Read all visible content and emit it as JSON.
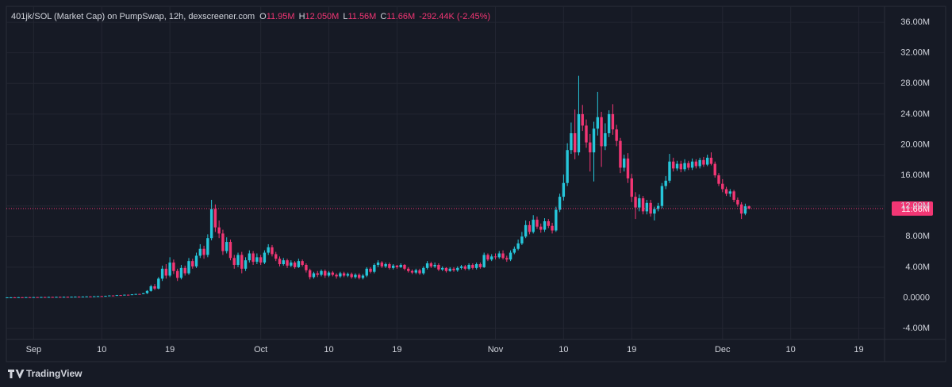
{
  "chart_data": {
    "type": "candlestick",
    "title": "401jk/SOL (Market Cap) on PumpSwap, 12h, dexscreener.com",
    "ohlc_legend": [
      {
        "key": "O",
        "value": "11.95M"
      },
      {
        "key": "H",
        "value": "12.050M"
      },
      {
        "key": "L",
        "value": "11.56M"
      },
      {
        "key": "C",
        "value": "11.66M"
      }
    ],
    "change": "-292.44K (-2.45%)",
    "brand": "TradingView",
    "last_price": {
      "value": 11.66,
      "label": "11.66M"
    },
    "up_color": "#26c6da",
    "down_color": "#f23674",
    "grid": true,
    "xlim": [
      -3.6,
      112.4
    ],
    "xticks": [
      {
        "value": 0,
        "label": "Sep"
      },
      {
        "value": 9,
        "label": "10"
      },
      {
        "value": 18,
        "label": "19"
      },
      {
        "value": 30,
        "label": "Oct"
      },
      {
        "value": 39,
        "label": "10"
      },
      {
        "value": 48,
        "label": "19"
      },
      {
        "value": 61,
        "label": "Nov"
      },
      {
        "value": 70,
        "label": "10"
      },
      {
        "value": 79,
        "label": "19"
      },
      {
        "value": 91,
        "label": "Dec"
      },
      {
        "value": 100,
        "label": "10"
      },
      {
        "value": 109,
        "label": "19"
      }
    ],
    "ylim": [
      -5.44,
      38.08
    ],
    "yticks": [
      {
        "value": -4,
        "label": "-4.00M"
      },
      {
        "value": 0,
        "label": "0.0000"
      },
      {
        "value": 4,
        "label": "4.00M"
      },
      {
        "value": 8,
        "label": "8.00M"
      },
      {
        "value": 12,
        "label": "12.00M"
      },
      {
        "value": 16,
        "label": "16.00M"
      },
      {
        "value": 20,
        "label": "20.00M"
      },
      {
        "value": 24,
        "label": "24.00M"
      },
      {
        "value": 28,
        "label": "28.00M"
      },
      {
        "value": 32,
        "label": "32.00M"
      },
      {
        "value": 36,
        "label": "36.00M"
      }
    ],
    "x": [
      -3.5,
      -3,
      -2.5,
      -2,
      -1.5,
      -1,
      -0.5,
      0,
      0.5,
      1,
      1.5,
      2,
      2.5,
      3,
      3.5,
      4,
      4.5,
      5,
      5.5,
      6,
      6.5,
      7,
      7.5,
      8,
      8.5,
      9,
      9.5,
      10,
      10.5,
      11,
      11.5,
      12,
      12.5,
      13,
      13.5,
      14,
      14.5,
      15,
      15.5,
      16,
      16.5,
      17,
      17.5,
      18,
      18.5,
      19,
      19.5,
      20,
      20.5,
      21,
      21.5,
      22,
      22.5,
      23,
      23.5,
      24,
      24.5,
      25,
      25.5,
      26,
      26.5,
      27,
      27.5,
      28,
      28.5,
      29,
      29.5,
      30,
      30.5,
      31,
      31.5,
      32,
      32.5,
      33,
      33.5,
      34,
      34.5,
      35,
      35.5,
      36,
      36.5,
      37,
      37.5,
      38,
      38.5,
      39,
      39.5,
      40,
      40.5,
      41,
      41.5,
      42,
      42.5,
      43,
      43.5,
      44,
      44.5,
      45,
      45.5,
      46,
      46.5,
      47,
      47.5,
      48,
      48.5,
      49,
      49.5,
      50,
      50.5,
      51,
      51.5,
      52,
      52.5,
      53,
      53.5,
      54,
      54.5,
      55,
      55.5,
      56,
      56.5,
      57,
      57.5,
      58,
      58.5,
      59,
      59.5,
      60,
      60.5,
      61,
      61.5,
      62,
      62.5,
      63,
      63.5,
      64,
      64.5,
      65,
      65.5,
      66,
      66.5,
      67,
      67.5,
      68,
      68.5,
      69,
      69.5,
      70,
      70.5,
      71,
      71.5,
      72,
      72.5,
      73,
      73.5,
      74,
      74.5,
      75,
      75.5,
      76,
      76.5,
      77,
      77.5,
      78,
      78.5,
      79,
      79.5,
      80,
      80.5,
      81,
      81.5,
      82,
      82.5,
      83,
      83.5,
      84,
      84.5,
      85,
      85.5,
      86,
      86.5,
      87,
      87.5,
      88,
      88.5,
      89,
      89.5,
      90,
      90.5,
      91,
      91.5,
      92,
      92.5,
      93,
      93.5,
      94,
      94.5
    ],
    "open": [
      0.04,
      0.05,
      0.06,
      0.05,
      0.07,
      0.06,
      0.08,
      0.07,
      0.09,
      0.08,
      0.1,
      0.09,
      0.11,
      0.1,
      0.12,
      0.11,
      0.13,
      0.12,
      0.14,
      0.15,
      0.14,
      0.16,
      0.18,
      0.17,
      0.2,
      0.22,
      0.21,
      0.25,
      0.3,
      0.28,
      0.35,
      0.33,
      0.4,
      0.38,
      0.45,
      0.5,
      0.48,
      0.6,
      0.9,
      1.5,
      1.2,
      2.5,
      3.8,
      2.9,
      4.6,
      3.5,
      2.6,
      3.9,
      3.2,
      4.8,
      4.1,
      5.5,
      6.4,
      5.6,
      7.8,
      11.6,
      9.2,
      8.4,
      6.1,
      7.3,
      5.2,
      4.3,
      5.6,
      3.8,
      4.9,
      5.8,
      4.7,
      5.3,
      4.6,
      5.9,
      6.6,
      5.7,
      5.1,
      4.4,
      4.9,
      4.2,
      4.6,
      4.0,
      4.8,
      4.3,
      3.6,
      2.7,
      3.2,
      3.0,
      3.5,
      2.9,
      3.3,
      3.0,
      2.8,
      3.2,
      2.9,
      3.1,
      2.7,
      3.0,
      2.6,
      2.9,
      3.8,
      3.4,
      4.3,
      4.6,
      4.1,
      4.4,
      3.9,
      4.2,
      4.0,
      4.3,
      3.8,
      3.5,
      3.3,
      3.6,
      3.2,
      3.9,
      4.5,
      4.1,
      4.3,
      3.7,
      3.9,
      3.5,
      3.8,
      3.6,
      3.9,
      4.1,
      3.8,
      4.3,
      3.9,
      4.4,
      4.0,
      5.6,
      5.0,
      5.4,
      5.3,
      5.8,
      5.2,
      5.0,
      5.9,
      6.4,
      7.1,
      8.0,
      9.5,
      8.6,
      10.2,
      9.3,
      8.9,
      10.0,
      9.4,
      8.8,
      11.5,
      13.2,
      15.0,
      19.3,
      21.5,
      19.0,
      24.0,
      22.5,
      20.3,
      19.0,
      22.1,
      23.6,
      19.8,
      21.5,
      24.0,
      22.0,
      20.5,
      17.0,
      18.2,
      15.6,
      13.2,
      11.8,
      13.0,
      11.3,
      12.4,
      11.0,
      11.6,
      12.0,
      14.6,
      15.3,
      17.8,
      16.9,
      17.5,
      16.8,
      17.6,
      17.0,
      17.8,
      17.2,
      18.0,
      17.4,
      18.3,
      17.5,
      16.0,
      14.9,
      14.2,
      13.6,
      13.9,
      12.8,
      12.2,
      11.0,
      11.95
    ],
    "high": [
      0.07,
      0.08,
      0.08,
      0.09,
      0.09,
      0.1,
      0.1,
      0.11,
      0.11,
      0.12,
      0.12,
      0.13,
      0.13,
      0.14,
      0.14,
      0.15,
      0.15,
      0.16,
      0.17,
      0.17,
      0.18,
      0.2,
      0.2,
      0.22,
      0.24,
      0.24,
      0.27,
      0.32,
      0.32,
      0.37,
      0.37,
      0.42,
      0.42,
      0.47,
      0.52,
      0.52,
      0.62,
      1.0,
      1.7,
      1.8,
      2.7,
      4.2,
      4.4,
      5.3,
      5.0,
      3.8,
      4.3,
      4.2,
      5.2,
      5.1,
      5.9,
      7.0,
      6.8,
      8.3,
      12.8,
      12.2,
      10.1,
      8.9,
      7.9,
      7.6,
      5.6,
      5.9,
      6.0,
      5.3,
      6.2,
      6.1,
      5.8,
      5.6,
      6.2,
      7.0,
      6.9,
      6.0,
      5.4,
      5.2,
      5.1,
      4.9,
      4.8,
      5.1,
      5.0,
      4.5,
      3.8,
      3.4,
      3.5,
      3.7,
      3.7,
      3.5,
      3.5,
      3.2,
      3.4,
      3.4,
      3.3,
      3.3,
      3.2,
      3.2,
      3.1,
      4.0,
      4.0,
      4.5,
      4.9,
      4.8,
      4.6,
      4.6,
      4.4,
      4.3,
      4.5,
      4.4,
      4.0,
      3.7,
      3.8,
      3.8,
      4.1,
      4.8,
      4.7,
      4.6,
      4.5,
      4.1,
      4.0,
      4.0,
      4.0,
      4.1,
      4.3,
      4.3,
      4.5,
      4.5,
      4.6,
      4.6,
      5.9,
      5.8,
      5.7,
      5.8,
      6.1,
      6.2,
      5.5,
      6.2,
      6.7,
      7.6,
      8.6,
      10.1,
      10.0,
      10.8,
      10.6,
      9.7,
      10.4,
      10.3,
      9.8,
      11.9,
      13.6,
      16.1,
      20.2,
      22.9,
      24.6,
      29.0,
      25.2,
      23.3,
      21.4,
      23.0,
      26.9,
      24.3,
      22.8,
      24.5,
      25.3,
      22.6,
      20.9,
      18.7,
      18.9,
      16.2,
      13.8,
      13.5,
      13.3,
      12.8,
      12.8,
      11.9,
      12.4,
      15.0,
      15.9,
      18.8,
      18.3,
      17.9,
      17.9,
      18.1,
      17.9,
      18.2,
      18.1,
      18.3,
      18.4,
      18.7,
      19.0,
      17.8,
      16.3,
      15.5,
      14.5,
      14.2,
      14.1,
      13.1,
      12.5,
      12.3,
      12.05
    ],
    "low": [
      0.02,
      0.03,
      0.03,
      0.03,
      0.04,
      0.04,
      0.05,
      0.05,
      0.06,
      0.06,
      0.07,
      0.07,
      0.08,
      0.08,
      0.09,
      0.09,
      0.1,
      0.1,
      0.12,
      0.12,
      0.12,
      0.14,
      0.15,
      0.15,
      0.18,
      0.19,
      0.19,
      0.23,
      0.26,
      0.26,
      0.31,
      0.31,
      0.36,
      0.36,
      0.43,
      0.46,
      0.46,
      0.5,
      0.8,
      1.0,
      1.1,
      2.2,
      2.5,
      2.7,
      3.1,
      2.2,
      2.4,
      2.9,
      3.0,
      3.8,
      3.9,
      5.2,
      5.1,
      5.3,
      7.5,
      8.6,
      7.8,
      5.6,
      5.8,
      4.9,
      3.8,
      4.0,
      3.2,
      3.5,
      4.6,
      4.3,
      4.4,
      4.3,
      4.4,
      5.6,
      5.4,
      4.8,
      4.1,
      4.2,
      3.9,
      4.0,
      3.8,
      3.9,
      4.1,
      3.3,
      2.4,
      2.5,
      2.7,
      2.8,
      2.6,
      2.7,
      2.8,
      2.5,
      2.6,
      2.7,
      2.7,
      2.5,
      2.5,
      2.4,
      2.4,
      2.7,
      3.2,
      3.2,
      4.0,
      3.9,
      3.9,
      3.7,
      3.7,
      3.8,
      3.9,
      3.6,
      3.3,
      3.1,
      3.1,
      3.0,
      3.0,
      3.7,
      3.9,
      3.9,
      3.5,
      3.5,
      3.3,
      3.4,
      3.4,
      3.4,
      3.7,
      3.6,
      3.6,
      3.7,
      3.7,
      3.8,
      3.9,
      4.8,
      4.8,
      5.0,
      5.1,
      5.0,
      4.7,
      4.8,
      5.7,
      6.2,
      6.9,
      7.8,
      8.3,
      8.4,
      9.0,
      8.5,
      8.6,
      9.1,
      8.4,
      8.6,
      11.2,
      12.7,
      14.6,
      18.8,
      18.1,
      18.6,
      21.8,
      19.6,
      16.5,
      15.2,
      21.2,
      17.1,
      19.3,
      21.0,
      21.3,
      19.8,
      16.3,
      16.5,
      15.0,
      12.5,
      10.3,
      11.3,
      10.9,
      10.9,
      10.6,
      10.1,
      11.3,
      11.7,
      14.2,
      15.0,
      16.5,
      16.6,
      16.4,
      16.5,
      16.7,
      16.7,
      16.9,
      16.9,
      17.1,
      17.2,
      17.3,
      15.7,
      14.6,
      13.8,
      13.3,
      13.2,
      12.5,
      11.9,
      10.3,
      10.8,
      11.56
    ],
    "close": [
      0.05,
      0.06,
      0.05,
      0.07,
      0.06,
      0.08,
      0.07,
      0.09,
      0.08,
      0.1,
      0.09,
      0.11,
      0.1,
      0.12,
      0.11,
      0.13,
      0.12,
      0.14,
      0.15,
      0.14,
      0.16,
      0.18,
      0.17,
      0.2,
      0.22,
      0.21,
      0.25,
      0.3,
      0.28,
      0.35,
      0.33,
      0.4,
      0.38,
      0.45,
      0.5,
      0.48,
      0.6,
      0.9,
      1.5,
      1.2,
      2.5,
      3.8,
      2.9,
      4.6,
      3.5,
      2.6,
      3.9,
      3.2,
      4.8,
      4.1,
      5.5,
      6.4,
      5.6,
      7.8,
      11.6,
      9.2,
      8.4,
      6.1,
      7.3,
      5.2,
      4.3,
      5.6,
      3.8,
      4.9,
      5.8,
      4.7,
      5.3,
      4.6,
      5.9,
      6.6,
      5.7,
      5.1,
      4.4,
      4.9,
      4.2,
      4.6,
      4.0,
      4.8,
      4.3,
      3.6,
      2.7,
      3.2,
      3.0,
      3.5,
      2.9,
      3.3,
      3.0,
      2.8,
      3.2,
      2.9,
      3.1,
      2.7,
      3.0,
      2.6,
      2.9,
      3.8,
      3.4,
      4.3,
      4.6,
      4.1,
      4.4,
      3.9,
      4.2,
      4.0,
      4.3,
      3.8,
      3.5,
      3.3,
      3.6,
      3.2,
      3.9,
      4.5,
      4.1,
      4.3,
      3.7,
      3.9,
      3.5,
      3.8,
      3.6,
      3.9,
      4.1,
      3.8,
      4.3,
      3.9,
      4.4,
      4.0,
      5.6,
      5.0,
      5.4,
      5.3,
      5.8,
      5.2,
      5.0,
      5.9,
      6.4,
      7.1,
      8.0,
      9.5,
      8.6,
      10.2,
      9.3,
      8.9,
      10.0,
      9.4,
      8.8,
      11.5,
      13.2,
      15.0,
      19.3,
      21.5,
      19.0,
      24.0,
      22.5,
      20.3,
      19.0,
      22.1,
      23.6,
      19.8,
      21.5,
      24.0,
      22.0,
      20.5,
      17.0,
      18.2,
      15.6,
      13.2,
      11.8,
      13.0,
      11.3,
      12.4,
      11.0,
      11.6,
      12.0,
      14.6,
      15.3,
      17.8,
      16.9,
      17.5,
      16.8,
      17.6,
      17.0,
      17.8,
      17.2,
      18.0,
      17.4,
      18.3,
      17.5,
      16.0,
      14.9,
      14.2,
      13.6,
      13.9,
      12.8,
      12.2,
      11.0,
      11.95,
      11.66
    ]
  }
}
